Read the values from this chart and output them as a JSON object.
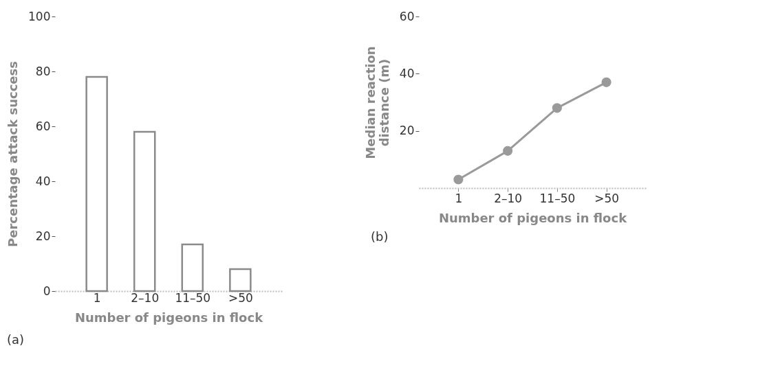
{
  "chart_data": [
    {
      "type": "bar",
      "categories": [
        "1",
        "2–10",
        "11–50",
        ">50"
      ],
      "values": [
        78,
        58,
        17,
        8
      ],
      "color": "#8a8a8a",
      "xlabel": "Number of pigeons in flock",
      "ylabel": "Percentage attack success",
      "ylim": [
        0,
        100
      ],
      "yticks": [
        0,
        20,
        40,
        60,
        80,
        100
      ],
      "grid": false,
      "annotations": [
        "(a)"
      ]
    },
    {
      "type": "line",
      "categories": [
        "1",
        "2–10",
        "11–50",
        ">50"
      ],
      "values": [
        3,
        13,
        28,
        37
      ],
      "color": "#9a9a9a",
      "marker": "circle",
      "xlabel": "Number of pigeons in flock",
      "ylabel": "Median reaction distance (m)",
      "ylim": [
        0,
        60
      ],
      "yticks": [
        20,
        40,
        60
      ],
      "grid": false,
      "annotations": [
        "(b)"
      ]
    }
  ]
}
